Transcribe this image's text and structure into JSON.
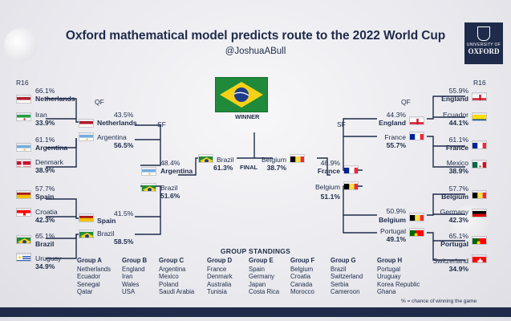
{
  "header": {
    "title": "Oxford mathematical model predicts route to the 2022 World Cup",
    "handle": "@JoshuaABull"
  },
  "logo": {
    "line1": "UNIVERSITY OF",
    "line2": "OXFORD"
  },
  "rounds": {
    "r16": "R16",
    "qf": "QF",
    "sf": "SF",
    "final": "FINAL",
    "winner": "WINNER"
  },
  "r16_left": [
    {
      "name": "Netherlands",
      "pct": "66.1%",
      "flag": "netherlands"
    },
    {
      "name": "Iran",
      "pct": "33.9%",
      "flag": "iran"
    },
    {
      "name": "Argentina",
      "pct": "61.1%",
      "flag": "argentina"
    },
    {
      "name": "Denmark",
      "pct": "38.9%",
      "flag": "denmark"
    },
    {
      "name": "Spain",
      "pct": "57.7%",
      "flag": "spain"
    },
    {
      "name": "Croatia",
      "pct": "42.3%",
      "flag": "croatia"
    },
    {
      "name": "Brazil",
      "pct": "65.1%",
      "flag": "brazil"
    },
    {
      "name": "Uruguay",
      "pct": "34.9%",
      "flag": "uruguay"
    }
  ],
  "r16_right": [
    {
      "name": "England",
      "pct": "55.9%",
      "flag": "england"
    },
    {
      "name": "Ecuador",
      "pct": "44.1%",
      "flag": "ecuador"
    },
    {
      "name": "France",
      "pct": "61.1%",
      "flag": "france"
    },
    {
      "name": "Mexico",
      "pct": "38.9%",
      "flag": "mexico"
    },
    {
      "name": "Belgium",
      "pct": "57.7%",
      "flag": "belgium"
    },
    {
      "name": "Germany",
      "pct": "42.3%",
      "flag": "germany"
    },
    {
      "name": "Portugal",
      "pct": "65.1%",
      "flag": "portugal"
    },
    {
      "name": "Switzerland",
      "pct": "34.9%",
      "flag": "switzerland"
    }
  ],
  "qf_left": [
    {
      "name": "Netherlands",
      "pct": "43.5%",
      "flag": "netherlands"
    },
    {
      "name": "Argentina",
      "pct": "56.5%",
      "flag": "argentina"
    },
    {
      "name": "Spain",
      "pct": "41.5%",
      "flag": "spain"
    },
    {
      "name": "Brazil",
      "pct": "58.5%",
      "flag": "brazil"
    }
  ],
  "qf_right": [
    {
      "name": "England",
      "pct": "44.3%",
      "flag": "england"
    },
    {
      "name": "France",
      "pct": "55.7%",
      "flag": "france"
    },
    {
      "name": "Belgium",
      "pct": "50.9%",
      "flag": "belgium"
    },
    {
      "name": "Portugal",
      "pct": "49.1%",
      "flag": "portugal"
    }
  ],
  "sf_left": [
    {
      "name": "Argentina",
      "pct": "48.4%",
      "flag": "argentina"
    },
    {
      "name": "Brazil",
      "pct": "51.6%",
      "flag": "brazil"
    }
  ],
  "sf_right": [
    {
      "name": "France",
      "pct": "48.9%",
      "flag": "france"
    },
    {
      "name": "Belgium",
      "pct": "51.1%",
      "flag": "belgium"
    }
  ],
  "final": [
    {
      "name": "Brazil",
      "pct": "61.3%",
      "flag": "brazil"
    },
    {
      "name": "Belgium",
      "pct": "38.7%",
      "flag": "belgium"
    }
  ],
  "group_standings": {
    "title": "GROUP STANDINGS",
    "groups": [
      {
        "name": "Group A",
        "teams": [
          "Netherlands",
          "Ecuador",
          "Senegal",
          "Qatar"
        ]
      },
      {
        "name": "Group B",
        "teams": [
          "England",
          "Iran",
          "Wales",
          "USA"
        ]
      },
      {
        "name": "Group C",
        "teams": [
          "Argentina",
          "Mexico",
          "Poland",
          "Saudi Arabia"
        ]
      },
      {
        "name": "Group D",
        "teams": [
          "France",
          "Denmark",
          "Australia",
          "Tunisia"
        ]
      },
      {
        "name": "Group E",
        "teams": [
          "Spain",
          "Germany",
          "Japan",
          "Costa Rica"
        ]
      },
      {
        "name": "Group F",
        "teams": [
          "Belgium",
          "Croatia",
          "Canada",
          "Morocco"
        ]
      },
      {
        "name": "Group G",
        "teams": [
          "Brazil",
          "Switzerland",
          "Serbia",
          "Cameroon"
        ]
      },
      {
        "name": "Group H",
        "teams": [
          "Portugal",
          "Uruguay",
          "Korea Republic",
          "Ghana"
        ]
      }
    ]
  },
  "footnote": "% = chance of winning the game",
  "colors": {
    "navy": "#1f2b4a",
    "line": "#1f2b4a",
    "background": "#ececf0"
  }
}
